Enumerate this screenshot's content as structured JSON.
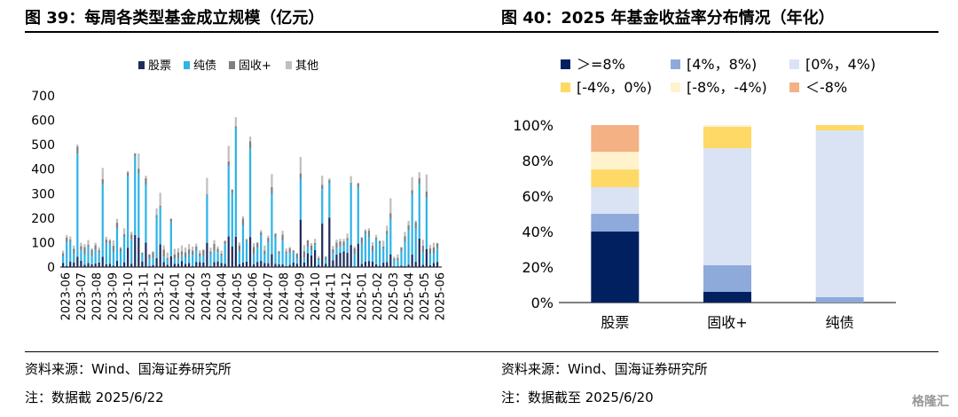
{
  "left_figure": {
    "title": "图 39：每周各类型基金成立规模（亿元）",
    "source": "资料来源：Wind、国海证券研究所",
    "note": "注：数据截 2025/6/22"
  },
  "right_figure": {
    "title": "图 40：2025 年基金收益率分布情况（年化）",
    "source": "资料来源：Wind、国海证券研究所",
    "note": "注：数据截至 2025/6/20"
  },
  "watermark": "格隆汇",
  "chart_data": [
    {
      "type": "bar",
      "stacked": true,
      "title": "",
      "ylim": [
        0,
        700
      ],
      "yticks": [
        0,
        100,
        200,
        300,
        400,
        500,
        600,
        700
      ],
      "month_labels": [
        "2023-06",
        "2023-07",
        "2023-08",
        "2023-09",
        "2023-10",
        "2023-11",
        "2023-12",
        "2024-01",
        "2024-02",
        "2024-03",
        "2024-04",
        "2024-05",
        "2024-06",
        "2024-07",
        "2024-08",
        "2024-09",
        "2024-10",
        "2024-11",
        "2024-12",
        "2025-01",
        "2025-02",
        "2025-03",
        "2025-04",
        "2025-05",
        "2025-06"
      ],
      "weeks_per_label": 4.2,
      "legend": [
        "股票",
        "纯债",
        "固收+",
        "其他"
      ],
      "colors": {
        "股票": "#1f2d5c",
        "纯债": "#2eb4e6",
        "固收+": "#7f7f7f",
        "其他": "#bfbfbf"
      },
      "series_note": "Weekly stacked values are approximate",
      "series": [
        {
          "name": "股票",
          "values": []
        },
        {
          "name": "纯债",
          "values": []
        },
        {
          "name": "固收+",
          "values": []
        },
        {
          "name": "其他",
          "values": []
        }
      ]
    },
    {
      "type": "bar",
      "stacked": true,
      "title": "",
      "categories": [
        "股票",
        "固收+",
        "纯债"
      ],
      "ylim": [
        0,
        100
      ],
      "yticks": [
        "0%",
        "20%",
        "40%",
        "60%",
        "80%",
        "100%"
      ],
      "legend_position": "top",
      "series": [
        {
          "name": "＞=8%",
          "color": "#002060",
          "values": [
            40,
            6,
            0
          ]
        },
        {
          "name": "[4%，8%)",
          "color": "#8eaadb",
          "values": [
            10,
            15,
            3
          ]
        },
        {
          "name": "[0%，4%)",
          "color": "#dae3f3",
          "values": [
            15,
            66,
            94
          ]
        },
        {
          "name": "[-4%，0%)",
          "color": "#ffd966",
          "values": [
            10,
            12,
            3
          ]
        },
        {
          "name": "[-8%，-4%)",
          "color": "#fff2cc",
          "values": [
            10,
            1,
            0
          ]
        },
        {
          "name": "＜-8%",
          "color": "#f4b183",
          "values": [
            15,
            0,
            0
          ]
        }
      ]
    }
  ]
}
